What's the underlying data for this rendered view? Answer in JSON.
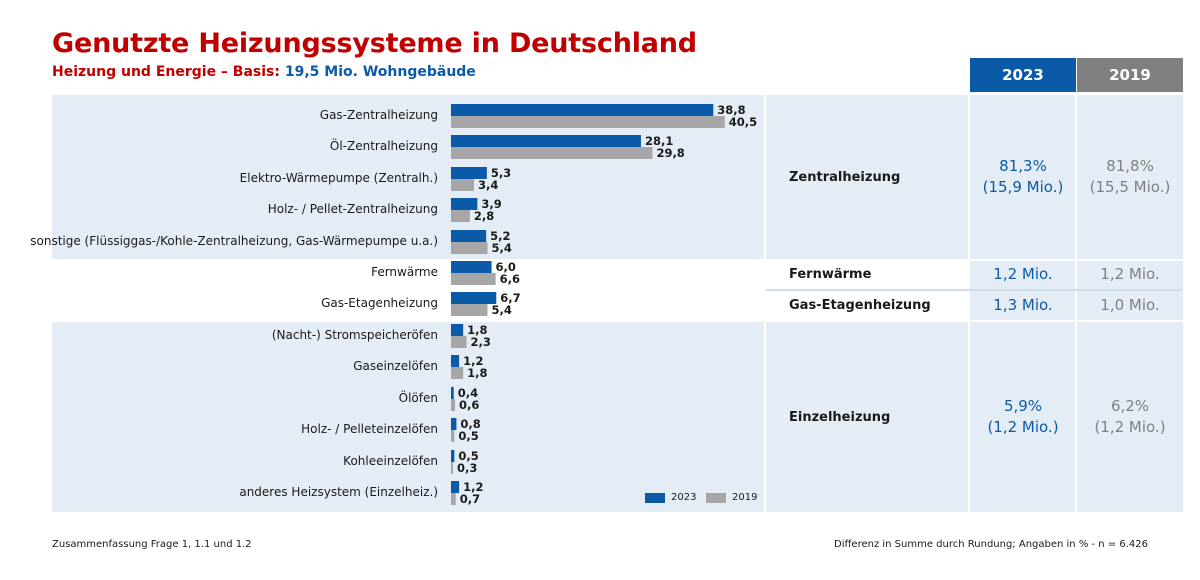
{
  "title": "Genutzte Heizungssysteme in Deutschland",
  "subtitle": {
    "part1": "Heizung und Energie – Basis:",
    "part2": "19,5 Mio. Wohngebäude"
  },
  "columns": {
    "y2023": "2023",
    "y2019": "2019"
  },
  "colors": {
    "series_2023": "#0b5aa7",
    "series_2019": "#a6a6a6",
    "title": "#c00000",
    "band": "#e4edf6"
  },
  "groups": [
    {
      "label": "Zentralheizung",
      "v2023_line1": "81,3%",
      "v2023_line2": "(15,9 Mio.)",
      "v2019_line1": "81,8%",
      "v2019_line2": "(15,5 Mio.)"
    },
    {
      "label": "Fernwärme",
      "v2023_line1": "1,2 Mio.",
      "v2019_line1": "1,2 Mio."
    },
    {
      "label": "Gas-Etagenheizung",
      "v2023_line1": "1,3 Mio.",
      "v2019_line1": "1,0 Mio."
    },
    {
      "label": "Einzelheizung",
      "v2023_line1": "5,9%",
      "v2023_line2": "(1,2 Mio.)",
      "v2019_line1": "6,2%",
      "v2019_line2": "(1,2 Mio.)"
    }
  ],
  "chart_data": {
    "type": "bar",
    "orientation": "horizontal",
    "unit": "%",
    "categories": [
      "Gas-Zentralheizung",
      "Öl-Zentralheizung",
      "Elektro-Wärmepumpe (Zentralh.)",
      "Holz- / Pellet-Zentralheizung",
      "sonstige (Flüssiggas-/Kohle-Zentralheizung, Gas-Wärmepumpe u.a.)",
      "Fernwärme",
      "Gas-Etagenheizung",
      "(Nacht-) Stromspeicheröfen",
      "Gaseinzelöfen",
      "Ölöfen",
      "Holz- / Pelleteinzelöfen",
      "Kohleeinzelöfen",
      "anderes Heizsystem (Einzelheiz.)"
    ],
    "series": [
      {
        "name": "2023",
        "values": [
          38.8,
          28.1,
          5.3,
          3.9,
          5.2,
          6.0,
          6.7,
          1.8,
          1.2,
          0.4,
          0.8,
          0.5,
          1.2
        ],
        "labels": [
          "38,8",
          "28,1",
          "5,3",
          "3,9",
          "5,2",
          "6,0",
          "6,7",
          "1,8",
          "1,2",
          "0,4",
          "0,8",
          "0,5",
          "1,2"
        ]
      },
      {
        "name": "2019",
        "values": [
          40.5,
          29.8,
          3.4,
          2.8,
          5.4,
          6.6,
          5.4,
          2.3,
          1.8,
          0.6,
          0.5,
          0.3,
          0.7
        ],
        "labels": [
          "40,5",
          "29,8",
          "3,4",
          "2,8",
          "5,4",
          "6,6",
          "5,4",
          "2,3",
          "1,8",
          "0,6",
          "0,5",
          "0,3",
          "0,7"
        ]
      }
    ],
    "xlim": [
      0,
      45
    ],
    "legend": "bottom-right"
  },
  "footer": {
    "left": "Zusammenfassung Frage 1, 1.1 und 1.2",
    "right": "Differenz in Summe durch Rundung; Angaben in % - n = 6.426"
  }
}
